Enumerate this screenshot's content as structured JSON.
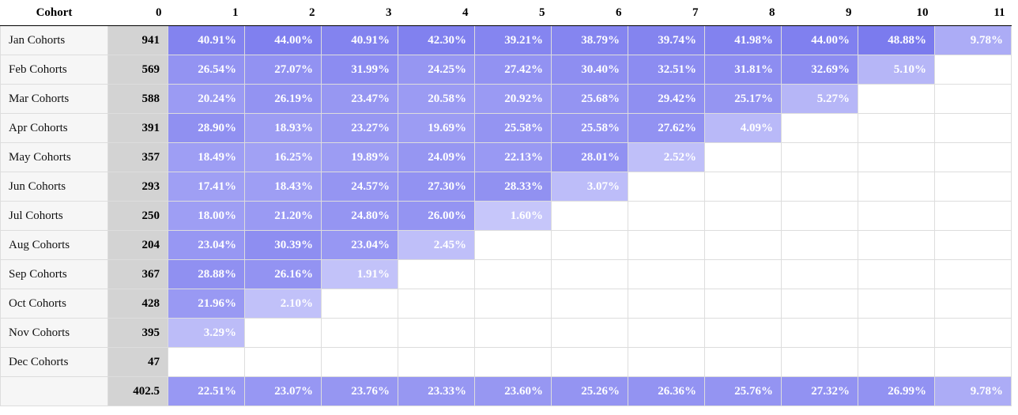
{
  "chart_data": {
    "type": "table",
    "headers": [
      "Cohort",
      "0",
      "1",
      "2",
      "3",
      "4",
      "5",
      "6",
      "7",
      "8",
      "9",
      "10",
      "11"
    ],
    "rows": [
      {
        "label": "Jan Cohorts",
        "size": "941",
        "values": [
          "40.91%",
          "44.00%",
          "40.91%",
          "42.30%",
          "39.21%",
          "38.79%",
          "39.74%",
          "41.98%",
          "44.00%",
          "48.88%",
          "9.78%"
        ]
      },
      {
        "label": "Feb Cohorts",
        "size": "569",
        "values": [
          "26.54%",
          "27.07%",
          "31.99%",
          "24.25%",
          "27.42%",
          "30.40%",
          "32.51%",
          "31.81%",
          "32.69%",
          "5.10%"
        ]
      },
      {
        "label": "Mar Cohorts",
        "size": "588",
        "values": [
          "20.24%",
          "26.19%",
          "23.47%",
          "20.58%",
          "20.92%",
          "25.68%",
          "29.42%",
          "25.17%",
          "5.27%"
        ]
      },
      {
        "label": "Apr Cohorts",
        "size": "391",
        "values": [
          "28.90%",
          "18.93%",
          "23.27%",
          "19.69%",
          "25.58%",
          "25.58%",
          "27.62%",
          "4.09%"
        ]
      },
      {
        "label": "May Cohorts",
        "size": "357",
        "values": [
          "18.49%",
          "16.25%",
          "19.89%",
          "24.09%",
          "22.13%",
          "28.01%",
          "2.52%"
        ]
      },
      {
        "label": "Jun Cohorts",
        "size": "293",
        "values": [
          "17.41%",
          "18.43%",
          "24.57%",
          "27.30%",
          "28.33%",
          "3.07%"
        ]
      },
      {
        "label": "Jul Cohorts",
        "size": "250",
        "values": [
          "18.00%",
          "21.20%",
          "24.80%",
          "26.00%",
          "1.60%"
        ]
      },
      {
        "label": "Aug Cohorts",
        "size": "204",
        "values": [
          "23.04%",
          "30.39%",
          "23.04%",
          "2.45%"
        ]
      },
      {
        "label": "Sep Cohorts",
        "size": "367",
        "values": [
          "28.88%",
          "26.16%",
          "1.91%"
        ]
      },
      {
        "label": "Oct Cohorts",
        "size": "428",
        "values": [
          "21.96%",
          "2.10%"
        ]
      },
      {
        "label": "Nov Cohorts",
        "size": "395",
        "values": [
          "3.29%"
        ]
      },
      {
        "label": "Dec Cohorts",
        "size": "47",
        "values": []
      }
    ],
    "summary": {
      "label": "",
      "size": "402.5",
      "values": [
        "22.51%",
        "23.07%",
        "23.76%",
        "23.33%",
        "23.60%",
        "25.26%",
        "26.36%",
        "25.76%",
        "27.32%",
        "26.99%",
        "9.78%"
      ]
    },
    "color_scale": {
      "low": "#c6c6fa",
      "high": "#7b7bee",
      "min_pct": 1.6,
      "max_pct": 48.88
    },
    "size_column_color": "#d3d3d3"
  }
}
